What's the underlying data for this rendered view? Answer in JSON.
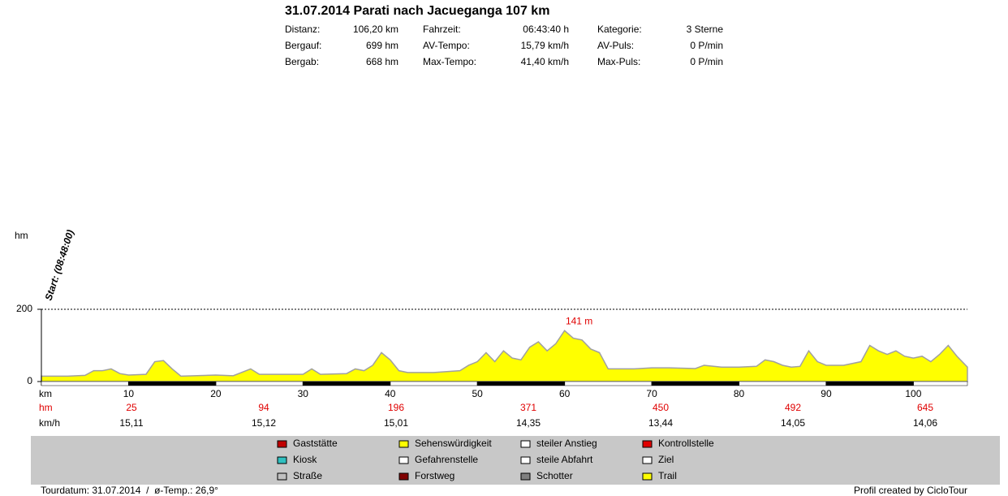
{
  "header": {
    "title": "31.07.2014 Parati nach Jacueganga 107 km",
    "stats": [
      [
        "Distanz:",
        "106,20 km",
        "Fahrzeit:",
        "06:43:40 h",
        "Kategorie:",
        "3 Sterne"
      ],
      [
        "Bergauf:",
        "699 hm",
        "AV-Tempo:",
        "15,79 km/h",
        "AV-Puls:",
        "0 P/min"
      ],
      [
        "Bergab:",
        "668 hm",
        "Max-Tempo:",
        "41,40 km/h",
        "Max-Puls:",
        "0 P/min"
      ]
    ]
  },
  "chart_data": {
    "type": "area",
    "x": [
      0,
      3,
      5,
      6,
      7,
      8,
      9,
      10,
      12,
      13,
      14,
      15,
      16,
      20,
      22,
      24,
      25,
      30,
      31,
      32,
      35,
      36,
      37,
      38,
      39,
      40,
      41,
      42,
      45,
      48,
      49,
      50,
      51,
      52,
      53,
      54,
      55,
      56,
      57,
      58,
      59,
      60,
      61,
      62,
      63,
      64,
      65,
      68,
      70,
      72,
      75,
      76,
      78,
      80,
      82,
      83,
      84,
      85,
      86,
      87,
      88,
      89,
      90,
      92,
      94,
      95,
      96,
      97,
      98,
      99,
      100,
      101,
      102,
      103,
      104,
      105,
      106.2
    ],
    "values": [
      15,
      15,
      17,
      30,
      30,
      35,
      22,
      18,
      20,
      55,
      58,
      35,
      15,
      18,
      16,
      35,
      20,
      20,
      35,
      20,
      22,
      35,
      30,
      45,
      80,
      60,
      30,
      25,
      25,
      30,
      45,
      55,
      80,
      55,
      85,
      65,
      60,
      95,
      110,
      85,
      105,
      141,
      120,
      115,
      90,
      80,
      35,
      35,
      38,
      38,
      36,
      45,
      40,
      40,
      42,
      60,
      55,
      45,
      40,
      42,
      85,
      55,
      45,
      45,
      55,
      100,
      85,
      75,
      85,
      70,
      65,
      70,
      55,
      75,
      100,
      70,
      40
    ],
    "color": "#ffff00",
    "line_color": "#a0a0a0",
    "xlabel": "km",
    "ylabel": "hm",
    "xlim": [
      0,
      106.2
    ],
    "ylim": [
      0,
      200
    ],
    "xticks": [
      10,
      20,
      30,
      40,
      50,
      60,
      70,
      80,
      90,
      100
    ],
    "yticks": [
      0,
      200
    ],
    "grid": true,
    "annotation": "141 m",
    "start_label": "Start: (08:48:00)"
  },
  "rows": [
    {
      "label": "hm",
      "values": [
        25,
        94,
        196,
        371,
        450,
        492,
        645
      ]
    },
    {
      "label": "km/h",
      "values": [
        "15,11",
        "15,12",
        "15,01",
        "14,35",
        "13,44",
        "14,05",
        "14,06"
      ]
    }
  ],
  "legend": [
    "Gaststätte",
    "Kiosk",
    "Straße",
    "Sehenswürdigkeit",
    "Gefahrenstelle",
    "Forstweg",
    "steiler Anstieg",
    "steile Abfahrt",
    "Schotter",
    "Kontrollstelle",
    "Ziel",
    "Trail"
  ],
  "footer": {
    "left": "Tourdatum: 31.07.2014  /  ø-Temp.: 26,9°",
    "right": "Profil created by CicloTour"
  }
}
